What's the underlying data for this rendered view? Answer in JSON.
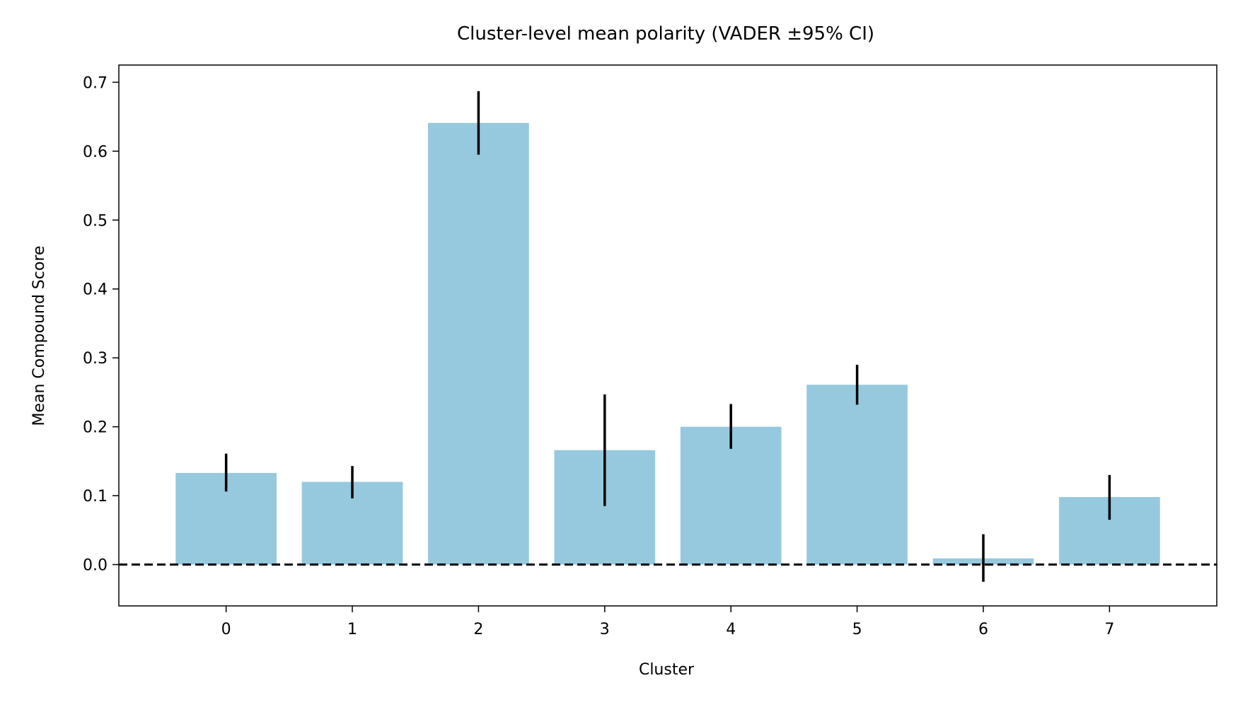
{
  "chart_data": {
    "type": "bar",
    "title": "Cluster-level mean polarity (VADER ±95% CI)",
    "xlabel": "Cluster",
    "ylabel": "Mean Compound Score",
    "categories": [
      "0",
      "1",
      "2",
      "3",
      "4",
      "5",
      "6",
      "7"
    ],
    "values": [
      0.133,
      0.12,
      0.641,
      0.166,
      0.2,
      0.261,
      0.009,
      0.098
    ],
    "ci_low": [
      0.106,
      0.096,
      0.595,
      0.085,
      0.168,
      0.232,
      -0.025,
      0.065
    ],
    "ci_high": [
      0.161,
      0.143,
      0.687,
      0.247,
      0.233,
      0.29,
      0.044,
      0.13
    ],
    "ylim": [
      -0.06,
      0.725
    ],
    "yticks": [
      "0.0",
      "0.1",
      "0.2",
      "0.3",
      "0.4",
      "0.5",
      "0.6",
      "0.7"
    ],
    "reference_line": 0.0,
    "bar_color": "#96c9de",
    "errorbar_color": "#000000",
    "grid": false
  }
}
